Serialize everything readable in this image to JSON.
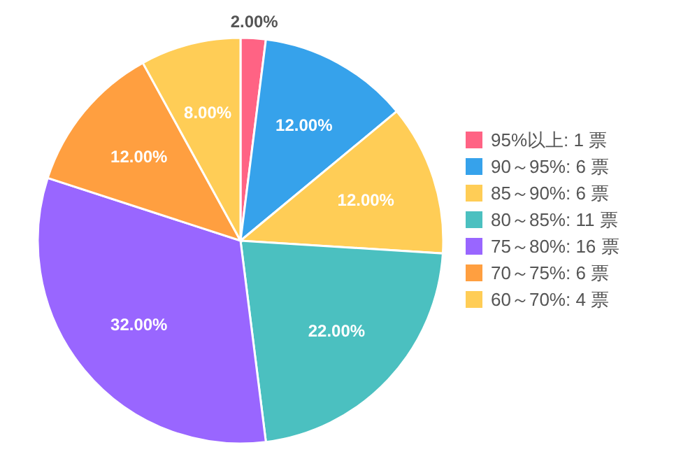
{
  "chart_data": {
    "type": "pie",
    "categories": [
      "95%以上: 1 票",
      "90～95%: 6 票",
      "85～90%: 6 票",
      "80～85%: 11 票",
      "75～80%: 16 票",
      "70～75%: 6 票",
      "60～70%: 4 票"
    ],
    "values": [
      2,
      12,
      12,
      22,
      32,
      12,
      8
    ],
    "colors": [
      "#ff6384",
      "#36a2eb",
      "#ffcd56",
      "#4bc0c0",
      "#9966ff",
      "#ff9f40",
      "#ffcd56"
    ],
    "value_labels": [
      "2.00%",
      "12.00%",
      "12.00%",
      "22.00%",
      "32.00%",
      "12.00%",
      "8.00%"
    ],
    "legend": "right"
  }
}
